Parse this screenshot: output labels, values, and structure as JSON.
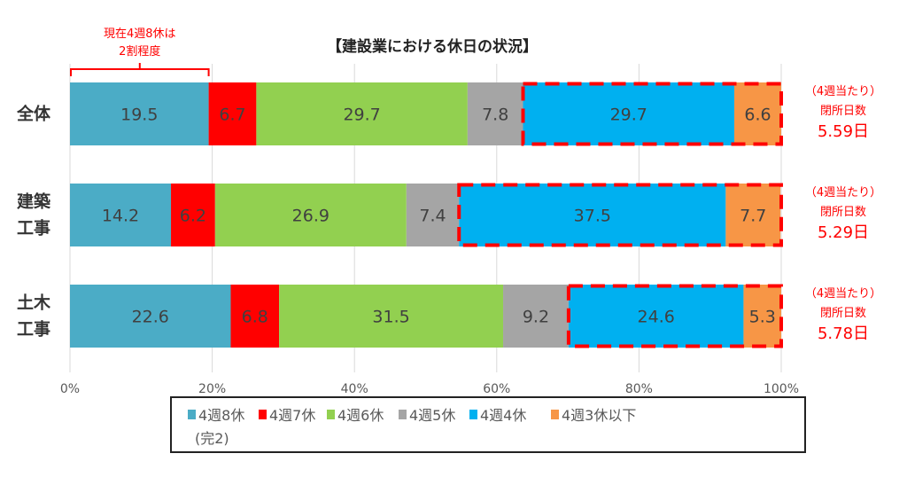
{
  "chart_data": {
    "type": "bar",
    "orientation": "horizontal",
    "stacked": "percent",
    "title": "【建設業における休日の状況】",
    "categories": [
      [
        "全体"
      ],
      [
        "建築",
        "工事"
      ],
      [
        "土木",
        "工事"
      ]
    ],
    "series": [
      {
        "name": "4週8休\n(完2)",
        "color": "#4BACC6",
        "values": [
          19.5,
          14.2,
          22.6
        ]
      },
      {
        "name": "4週7休",
        "color": "#FF0000",
        "values": [
          6.7,
          6.2,
          6.8
        ]
      },
      {
        "name": "4週6休",
        "color": "#92D050",
        "values": [
          29.7,
          26.9,
          31.5
        ]
      },
      {
        "name": "4週5休",
        "color": "#A5A5A5",
        "values": [
          7.8,
          7.4,
          9.2
        ]
      },
      {
        "name": "4週4休",
        "color": "#00B0F0",
        "values": [
          29.7,
          37.5,
          24.6
        ]
      },
      {
        "name": "4週3休以下",
        "color": "#F79646",
        "values": [
          6.6,
          7.7,
          5.3
        ]
      }
    ],
    "xlim": [
      0,
      100
    ],
    "xticks": [
      "0%",
      "20%",
      "40%",
      "60%",
      "80%",
      "100%"
    ],
    "grid": "vertical",
    "legend": "bottom",
    "highlight": {
      "series": [
        "4週4休",
        "4週3休以下"
      ],
      "style": "red dashed box",
      "color": "#FF0000"
    },
    "annotations": {
      "bracket_note": [
        "現在4週8休は",
        "2割程度"
      ],
      "right_notes": [
        {
          "line1": "（4週当たり）",
          "line2": "閉所日数",
          "value": "5.59日"
        },
        {
          "line1": "（4週当たり）",
          "line2": "閉所日数",
          "value": "5.29日"
        },
        {
          "line1": "（4週当たり）",
          "line2": "閉所日数",
          "value": "5.78日"
        }
      ]
    }
  }
}
